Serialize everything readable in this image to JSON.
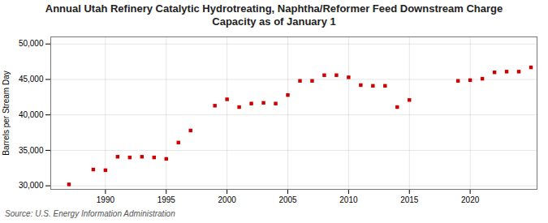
{
  "chart_data": {
    "type": "scatter",
    "title": "Annual Utah Refinery Catalytic Hydrotreating, Naphtha/Reformer Feed Downstream Charge\nCapacity as of January 1",
    "ylabel": "Barrels per Stream Day",
    "source": "Source: U.S. Energy Information Administration",
    "color": "#cc0000",
    "marker": "square",
    "grid": true,
    "xlim": [
      1985.5,
      2025.5
    ],
    "xticks": [
      1990,
      1995,
      2000,
      2005,
      2010,
      2015,
      2020
    ],
    "ylim": [
      29500,
      51000
    ],
    "yticks": [
      {
        "value": 30000,
        "label": "30,000"
      },
      {
        "value": 35000,
        "label": "35,000"
      },
      {
        "value": 40000,
        "label": "40,000"
      },
      {
        "value": 45000,
        "label": "45,000"
      },
      {
        "value": 50000,
        "label": "50,000"
      }
    ],
    "x": [
      1987,
      1989,
      1990,
      1991,
      1992,
      1993,
      1994,
      1995,
      1996,
      1997,
      1999,
      2000,
      2001,
      2002,
      2003,
      2004,
      2005,
      2006,
      2007,
      2008,
      2009,
      2010,
      2011,
      2012,
      2013,
      2014,
      2015,
      2019,
      2020,
      2021,
      2022,
      2023,
      2024,
      2025
    ],
    "values": [
      30200,
      32300,
      32200,
      34100,
      34000,
      34100,
      34000,
      33800,
      36100,
      37800,
      41300,
      42200,
      41100,
      41600,
      41700,
      41600,
      42800,
      44800,
      44800,
      45600,
      45600,
      45300,
      44200,
      44100,
      44100,
      41100,
      42100,
      44800,
      44900,
      45100,
      46000,
      46100,
      46100,
      46700
    ]
  }
}
